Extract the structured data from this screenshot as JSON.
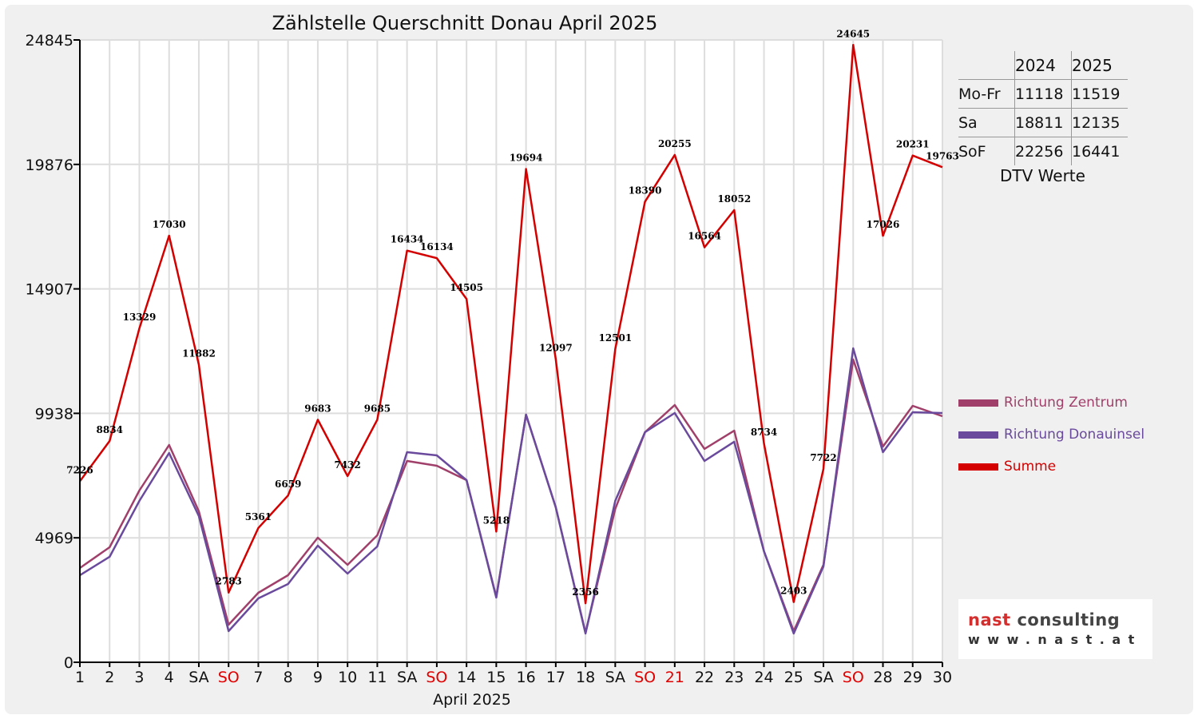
{
  "chart_data": {
    "type": "line",
    "title": "Zählstelle Querschnitt Donau April 2025",
    "xlabel": "April 2025",
    "ylabel": "",
    "ylim": [
      0,
      24845
    ],
    "yticks": [
      0,
      4969,
      9938,
      14907,
      19876,
      24845
    ],
    "grid": true,
    "x": [
      1,
      2,
      3,
      4,
      5,
      6,
      7,
      8,
      9,
      10,
      11,
      12,
      13,
      14,
      15,
      16,
      17,
      18,
      19,
      20,
      21,
      22,
      23,
      24,
      25,
      26,
      27,
      28,
      29,
      30
    ],
    "xtick_labels": [
      "1",
      "2",
      "3",
      "4",
      "SA",
      "SO",
      "7",
      "8",
      "9",
      "10",
      "11",
      "SA",
      "SO",
      "14",
      "15",
      "16",
      "17",
      "18",
      "SA",
      "SO",
      "21",
      "22",
      "23",
      "24",
      "25",
      "SA",
      "SO",
      "28",
      "29",
      "30"
    ],
    "xtick_red": [
      false,
      false,
      false,
      false,
      false,
      true,
      false,
      false,
      false,
      false,
      false,
      false,
      true,
      false,
      false,
      false,
      false,
      false,
      false,
      true,
      true,
      false,
      false,
      false,
      false,
      false,
      true,
      false,
      false,
      false
    ],
    "series": [
      {
        "name": "Richtung Zentrum",
        "color": "#a0406a",
        "values": [
          3763,
          4593,
          6857,
          8675,
          6028,
          1499,
          2775,
          3476,
          4975,
          3891,
          5071,
          8037,
          7846,
          7272,
          2615,
          9887,
          6187,
          1180,
          6124,
          9185,
          10270,
          8516,
          9249,
          4433,
          1244,
          3891,
          12088,
          8611,
          10238,
          9823
        ]
      },
      {
        "name": "Richtung Donauinsel",
        "color": "#6a4a9c",
        "values": [
          3476,
          4210,
          6443,
          8356,
          5837,
          1244,
          2552,
          3126,
          4657,
          3540,
          4625,
          8388,
          8261,
          7272,
          2583,
          9887,
          6187,
          1148,
          6443,
          9185,
          9951,
          8037,
          8803,
          4433,
          1148,
          3827,
          12534,
          8388,
          9983,
          9951
        ]
      },
      {
        "name": "Summe",
        "color": "#d40000",
        "values": [
          7226,
          8834,
          13329,
          17030,
          11882,
          2783,
          5361,
          6659,
          9683,
          7432,
          9685,
          16434,
          16134,
          14505,
          5218,
          19694,
          12097,
          2356,
          12501,
          18390,
          20255,
          16564,
          18052,
          8734,
          2403,
          7722,
          24645,
          17026,
          20231,
          19763
        ]
      }
    ],
    "data_labels_series": "Summe",
    "legend_position": "right"
  },
  "dtv_table": {
    "caption": "DTV Werte",
    "headers": [
      "",
      "2024",
      "2025"
    ],
    "rows": [
      {
        "label": "Mo-Fr",
        "v2024": "11118",
        "v2025": "11519"
      },
      {
        "label": "Sa",
        "v2024": "18811",
        "v2025": "12135"
      },
      {
        "label": "SoF",
        "v2024": "22256",
        "v2025": "16441"
      }
    ]
  },
  "logo": {
    "line1a": "nast",
    "line1b": " consulting",
    "line2": "www.nast.at",
    "red": "#d32f2f",
    "dark": "#444444"
  }
}
